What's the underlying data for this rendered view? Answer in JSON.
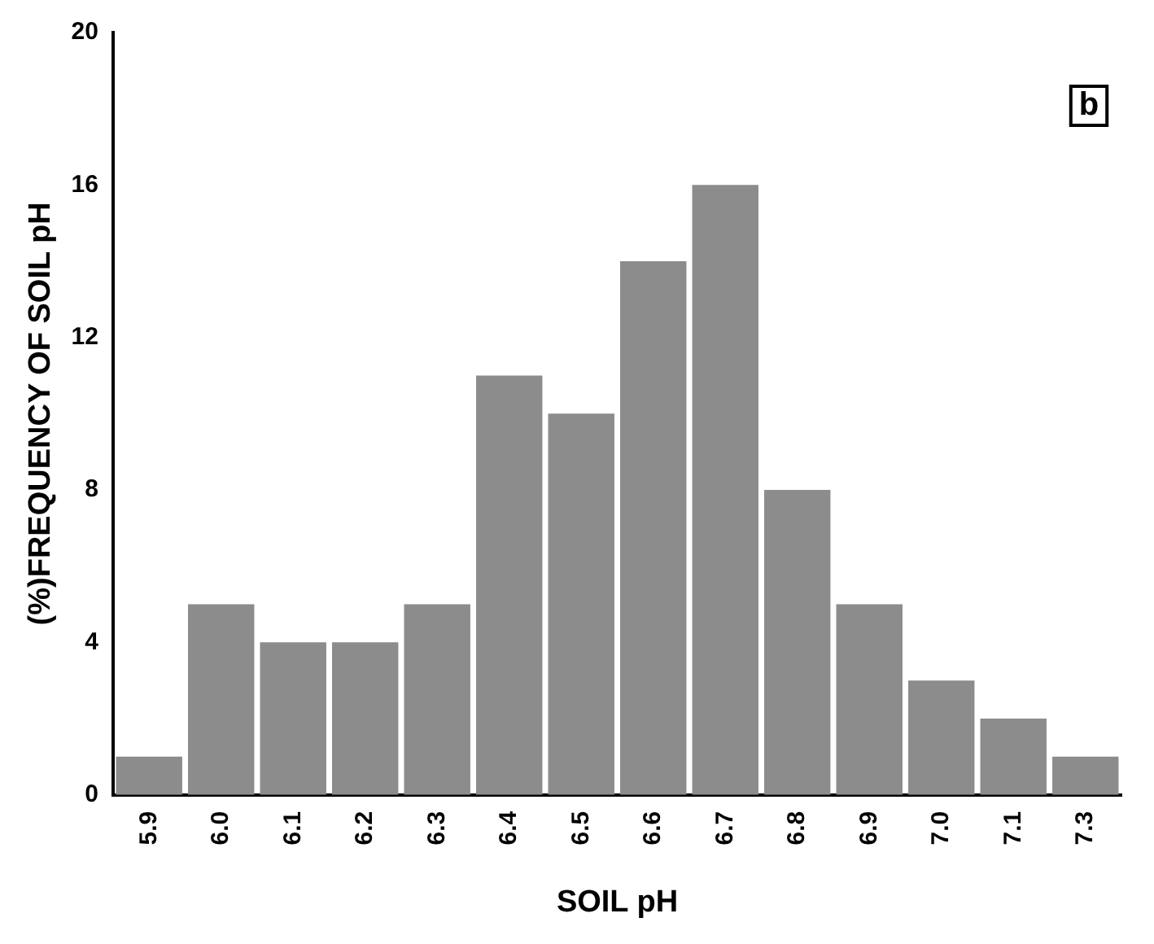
{
  "chart_data": {
    "type": "bar",
    "xlabel": "SOIL pH",
    "ylabel": "(%)FREQUENCY OF SOIL pH",
    "categories": [
      "5.9",
      "6.0",
      "6.1",
      "6.2",
      "6.3",
      "6.4",
      "6.5",
      "6.6",
      "6.7",
      "6.8",
      "6.9",
      "7.0",
      "7.1",
      "7.3"
    ],
    "values": [
      1,
      5,
      4,
      4,
      5,
      11,
      10,
      14,
      16,
      8,
      5,
      3,
      2,
      1
    ],
    "color": "#8c8c8c",
    "ylim": [
      0,
      20
    ],
    "yticks": [
      0,
      4,
      8,
      12,
      16,
      20
    ],
    "grid": false,
    "legend": false,
    "annotations": [
      "b"
    ]
  }
}
